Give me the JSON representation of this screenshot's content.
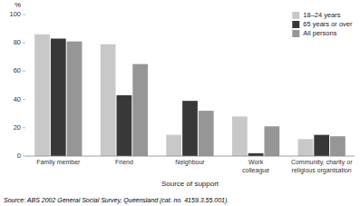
{
  "chart_data": {
    "type": "bar",
    "categories": [
      "Family member",
      "Friend",
      "Neighbour",
      "Work\ncolleague",
      "Community, charity or\nreligious organisation"
    ],
    "series": [
      {
        "name": "18–24 years",
        "color": "#c8c8c8",
        "values": [
          86,
          79,
          15,
          28,
          12
        ]
      },
      {
        "name": "65 years or over",
        "color": "#383838",
        "values": [
          83,
          43,
          39,
          2,
          15
        ]
      },
      {
        "name": "All persons",
        "color": "#969696",
        "values": [
          81,
          65,
          32,
          21,
          14
        ]
      }
    ],
    "xlabel": "Source of support",
    "ylabel": "%",
    "ylim": [
      0,
      100
    ],
    "yticks": [
      0,
      20,
      40,
      60,
      80,
      100
    ],
    "grid": false,
    "legend": "upper-right",
    "annotations": [
      "Source: ABS 2002 General Social Survey, Queensland (cat. no. 4159.3.55.001)."
    ]
  }
}
